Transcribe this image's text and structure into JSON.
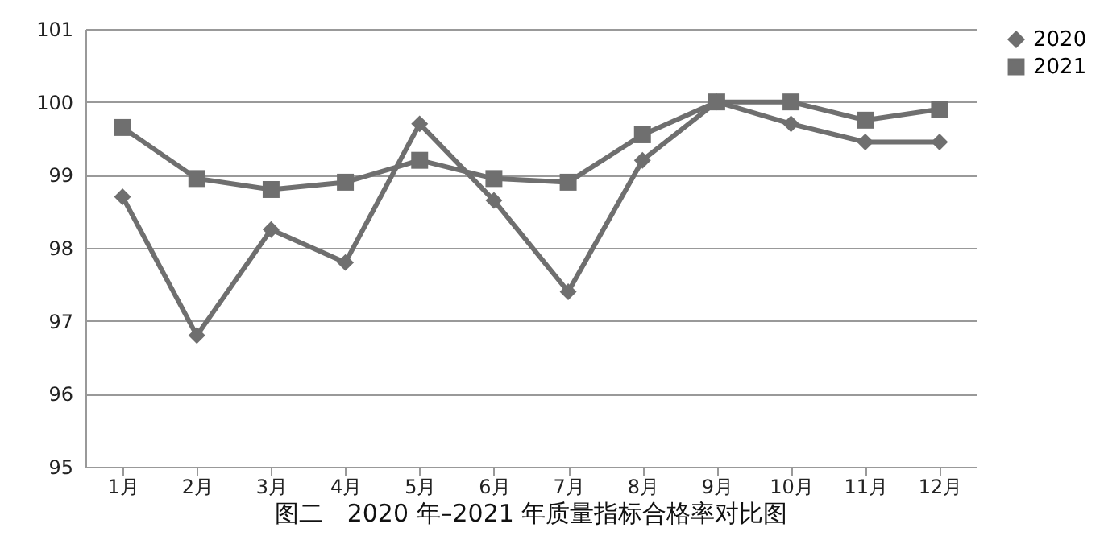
{
  "chart_data": {
    "type": "line",
    "title": "图二　2020 年–2021 年质量指标合格率对比图",
    "categories": [
      "1月",
      "2月",
      "3月",
      "4月",
      "5月",
      "6月",
      "7月",
      "8月",
      "9月",
      "10月",
      "11月",
      "12月"
    ],
    "series": [
      {
        "name": "2020",
        "color": "#6f6f6f",
        "marker": "diamond",
        "values": [
          98.7,
          96.8,
          98.25,
          97.8,
          99.7,
          98.65,
          97.4,
          99.2,
          100,
          99.7,
          99.45,
          99.45
        ]
      },
      {
        "name": "2021",
        "color": "#6f6f6f",
        "marker": "square",
        "values": [
          99.65,
          98.95,
          98.8,
          98.9,
          99.2,
          98.95,
          98.9,
          99.55,
          100,
          100,
          99.75,
          99.9
        ]
      }
    ],
    "ylim": [
      95,
      101
    ],
    "yticks": [
      95,
      96,
      97,
      98,
      99,
      100,
      101
    ],
    "grid": "y",
    "legend": "right",
    "line_style": "solid"
  }
}
